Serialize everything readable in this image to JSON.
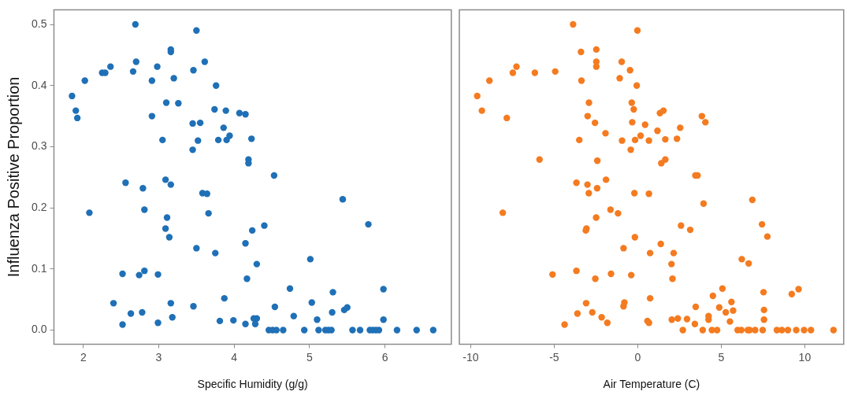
{
  "chart_data": [
    {
      "type": "scatter",
      "xlabel": "Specific Humidity (g/g)",
      "ylabel": "Influenza Positive Proportion",
      "marker": "circle",
      "color": "#1f70b6",
      "xlim": [
        1.61,
        6.88
      ],
      "xticks": [
        2,
        3,
        4,
        5,
        6
      ],
      "ylim": [
        -0.023,
        0.524
      ],
      "yticks": [
        {
          "value": 0,
          "label": "0.0"
        },
        {
          "value": 0.1,
          "label": "0.1"
        },
        {
          "value": 0.2,
          "label": "0.2"
        },
        {
          "value": 0.3,
          "label": "0.3"
        },
        {
          "value": 0.4,
          "label": "0.4"
        },
        {
          "value": 0.5,
          "label": "0.5"
        }
      ],
      "x": [
        2.69,
        3.5,
        3.16,
        3.16,
        2.7,
        3.61,
        2.36,
        2.98,
        2.66,
        3.46,
        2.25,
        2.29,
        3.2,
        2.02,
        2.91,
        3.76,
        1.85,
        1.9,
        1.92,
        3.1,
        3.26,
        2.91,
        3.74,
        3.89,
        4.07,
        4.15,
        3.45,
        3.55,
        3.86,
        3.94,
        3.05,
        3.52,
        3.79,
        3.9,
        3.45,
        4.19,
        4.19,
        2.56,
        3.09,
        3.16,
        2.79,
        3.58,
        3.64,
        2.08,
        2.81,
        3.66,
        3.11,
        3.09,
        3.14,
        3.5,
        3.75,
        4.15,
        2.52,
        2.74,
        2.81,
        2.99,
        4.17,
        2.4,
        3.16,
        3.46,
        3.87,
        2.63,
        2.78,
        3.18,
        2.52,
        2.99,
        3.81,
        3.99,
        4.15,
        4.23,
        4.53,
        5.44,
        5.78,
        4.24,
        4.4,
        4.3,
        5.01,
        4.74,
        5.31,
        5.98,
        4.54,
        5.03,
        4.79,
        5.3,
        5.46,
        5.5,
        5.1,
        5.98,
        4.26,
        4.3,
        4.28,
        4.46,
        4.51,
        4.56,
        4.65,
        4.93,
        5.12,
        5.21,
        5.25,
        5.29,
        5.57,
        5.67,
        5.8,
        5.84,
        5.88,
        5.92,
        6.16,
        6.42,
        6.64
      ],
      "values": [
        0.5,
        0.49,
        0.459,
        0.455,
        0.439,
        0.439,
        0.431,
        0.431,
        0.423,
        0.425,
        0.421,
        0.421,
        0.412,
        0.408,
        0.408,
        0.4,
        0.383,
        0.359,
        0.347,
        0.372,
        0.371,
        0.35,
        0.361,
        0.359,
        0.355,
        0.353,
        0.338,
        0.339,
        0.331,
        0.318,
        0.311,
        0.31,
        0.311,
        0.311,
        0.295,
        0.279,
        0.273,
        0.241,
        0.246,
        0.238,
        0.232,
        0.224,
        0.223,
        0.192,
        0.197,
        0.191,
        0.184,
        0.166,
        0.152,
        0.134,
        0.126,
        0.142,
        0.092,
        0.09,
        0.097,
        0.091,
        0.084,
        0.044,
        0.044,
        0.039,
        0.052,
        0.027,
        0.029,
        0.021,
        0.009,
        0.012,
        0.015,
        0.016,
        0.01,
        0.313,
        0.253,
        0.214,
        0.173,
        0.163,
        0.171,
        0.108,
        0.116,
        0.068,
        0.062,
        0.067,
        0.038,
        0.045,
        0.023,
        0.029,
        0.033,
        0.037,
        0.017,
        0.017,
        0.019,
        0.019,
        0.01,
        0,
        0,
        0,
        0,
        0,
        0,
        0,
        0,
        0,
        0,
        0,
        0,
        0,
        0,
        0,
        0,
        0,
        0
      ]
    },
    {
      "type": "scatter",
      "xlabel": "Air Temperature (C)",
      "marker": "circle",
      "color": "#f47b20",
      "tick_labels": "x",
      "xlim": [
        -10.68,
        12.33
      ],
      "xticks": [
        -10,
        -5,
        0,
        5,
        10
      ],
      "ylim": [
        -0.023,
        0.524
      ],
      "x": [
        -3.87,
        -0.02,
        -3.4,
        -2.48,
        -2.48,
        -2.48,
        -0.96,
        -0.46,
        -7.26,
        -7.48,
        -6.16,
        -4.94,
        -8.88,
        -3.37,
        -1.08,
        -0.06,
        -9.61,
        -9.33,
        -7.84,
        -2.92,
        -0.36,
        -0.24,
        -3.0,
        -2.56,
        -0.33,
        0.44,
        -1.93,
        -3.5,
        -0.94,
        -0.16,
        0.17,
        0.67,
        -0.42,
        -5.88,
        -2.42,
        -3.67,
        -3.01,
        -2.93,
        -2.43,
        -1.9,
        -0.2,
        0.67,
        -8.08,
        -1.63,
        -1.18,
        -2.49,
        -3.07,
        -3.11,
        -0.17,
        -0.85,
        0.74,
        -5.1,
        -3.67,
        -2.54,
        -1.6,
        -0.39,
        0.74,
        -3.09,
        -0.8,
        -0.85,
        -3.61,
        -2.72,
        -2.16,
        -1.82,
        -4.38,
        0.58,
        0.67,
        1.33,
        1.54,
        3.84,
        4.05,
        1.18,
        2.54,
        1.65,
        2.35,
        1.41,
        1.65,
        3.45,
        3.58,
        3.94,
        6.86,
        2.59,
        3.14,
        7.44,
        7.76,
        1.38,
        2.15,
        2.02,
        2.08,
        6.23,
        6.64,
        5.07,
        4.5,
        3.47,
        4.88,
        5.61,
        5.71,
        5.27,
        7.53,
        7.56,
        7.56,
        9.22,
        9.63,
        2.04,
        2.4,
        2.95,
        3.42,
        4.24,
        4.24,
        5.52,
        2.7,
        3.89,
        4.44,
        4.75,
        5.98,
        6.2,
        6.59,
        6.7,
        7.03,
        7.48,
        8.33,
        8.63,
        8.99,
        9.49,
        9.96,
        10.37,
        11.72
      ],
      "values": [
        0.5,
        0.49,
        0.455,
        0.459,
        0.439,
        0.431,
        0.439,
        0.425,
        0.431,
        0.421,
        0.421,
        0.423,
        0.408,
        0.408,
        0.412,
        0.4,
        0.383,
        0.359,
        0.347,
        0.372,
        0.372,
        0.361,
        0.35,
        0.339,
        0.34,
        0.336,
        0.322,
        0.311,
        0.31,
        0.311,
        0.318,
        0.31,
        0.295,
        0.279,
        0.277,
        0.241,
        0.238,
        0.224,
        0.232,
        0.246,
        0.224,
        0.223,
        0.192,
        0.197,
        0.191,
        0.184,
        0.166,
        0.163,
        0.152,
        0.134,
        0.126,
        0.091,
        0.097,
        0.084,
        0.092,
        0.09,
        0.052,
        0.044,
        0.045,
        0.039,
        0.027,
        0.029,
        0.021,
        0.012,
        0.009,
        0.015,
        0.012,
        0.355,
        0.359,
        0.35,
        0.34,
        0.326,
        0.331,
        0.312,
        0.313,
        0.273,
        0.279,
        0.253,
        0.253,
        0.207,
        0.213,
        0.171,
        0.164,
        0.173,
        0.153,
        0.141,
        0.126,
        0.108,
        0.084,
        0.116,
        0.109,
        0.068,
        0.056,
        0.038,
        0.037,
        0.046,
        0.032,
        0.029,
        0.062,
        0.033,
        0.017,
        0.059,
        0.067,
        0.017,
        0.019,
        0.018,
        0.01,
        0.023,
        0.017,
        0.014,
        0,
        0,
        0,
        0,
        0,
        0,
        0,
        0,
        0,
        0,
        0,
        0,
        0,
        0,
        0,
        0,
        0
      ]
    }
  ]
}
